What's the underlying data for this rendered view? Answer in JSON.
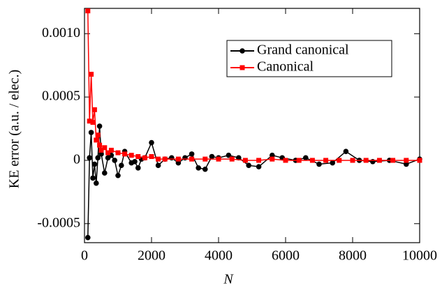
{
  "chart_data": {
    "type": "line",
    "xlabel": "N",
    "ylabel": "KE error (a.u. / elec.)",
    "xlim": [
      0,
      10000
    ],
    "xticks": [
      0,
      2000,
      4000,
      6000,
      8000,
      10000
    ],
    "ylim": [
      -0.00065,
      0.0012
    ],
    "yticks": [
      -0.0005,
      0,
      0.0005,
      {
        "value": 0.001,
        "label": "0.0010"
      }
    ],
    "legend": "upper right",
    "series": [
      {
        "name": "Grand canonical",
        "color": "#000000",
        "marker": "circle",
        "x": [
          100,
          150,
          200,
          250,
          300,
          350,
          400,
          450,
          500,
          600,
          700,
          800,
          900,
          1000,
          1100,
          1200,
          1400,
          1500,
          1600,
          1700,
          1800,
          2000,
          2200,
          2400,
          2600,
          2800,
          3000,
          3200,
          3400,
          3600,
          3800,
          4000,
          4300,
          4600,
          4900,
          5200,
          5600,
          5900,
          6300,
          6600,
          7000,
          7400,
          7800,
          8200,
          8600,
          9100,
          9600,
          10000
        ],
        "values": [
          -0.00061,
          2e-05,
          0.00022,
          -0.00014,
          -3e-05,
          -0.00018,
          2e-05,
          0.00027,
          5e-05,
          -0.0001,
          2e-05,
          4e-05,
          0.0,
          -0.00012,
          -4e-05,
          7e-05,
          -2e-05,
          -1e-05,
          -6e-05,
          1e-05,
          2e-05,
          0.00014,
          -4e-05,
          1e-05,
          2e-05,
          -2e-05,
          2e-05,
          5e-05,
          -6e-05,
          -7e-05,
          3e-05,
          2e-05,
          4e-05,
          2e-05,
          -4e-05,
          -5e-05,
          4e-05,
          2e-05,
          0.0,
          2e-05,
          -3e-05,
          -2e-05,
          7e-05,
          0.0,
          -1e-05,
          0.0,
          -3e-05,
          1e-05
        ]
      },
      {
        "name": "Canonical",
        "color": "#ff0000",
        "marker": "square",
        "x": [
          100,
          150,
          200,
          250,
          300,
          350,
          400,
          450,
          500,
          600,
          700,
          800,
          1000,
          1200,
          1400,
          1600,
          1800,
          2000,
          2200,
          2400,
          2800,
          3200,
          3600,
          4000,
          4400,
          4800,
          5200,
          5600,
          6000,
          6400,
          6800,
          7200,
          7600,
          8000,
          8400,
          8800,
          9200,
          9600,
          10000
        ],
        "values": [
          0.00118,
          0.00031,
          0.00068,
          0.0003,
          0.0004,
          0.00016,
          0.0002,
          0.00012,
          8e-05,
          0.0001,
          6e-05,
          8e-05,
          6e-05,
          5e-05,
          4e-05,
          3e-05,
          2e-05,
          3e-05,
          1e-05,
          1e-05,
          1e-05,
          1e-05,
          1e-05,
          1e-05,
          1e-05,
          0.0,
          0.0,
          1e-05,
          0.0,
          0.0,
          0.0,
          0.0,
          0.0,
          0.0,
          0.0,
          0.0,
          0.0,
          0.0,
          0.0
        ]
      }
    ]
  }
}
